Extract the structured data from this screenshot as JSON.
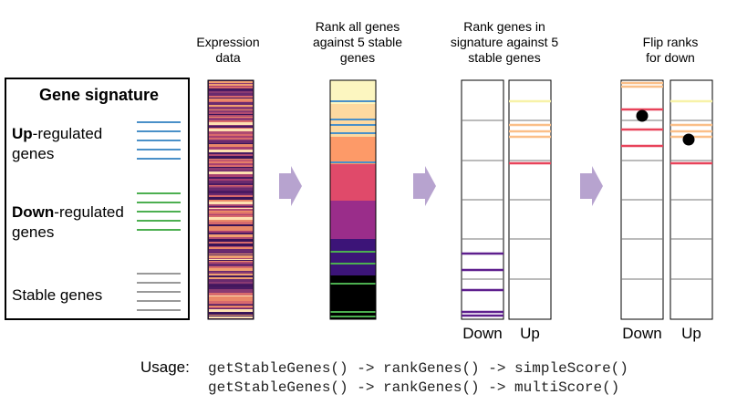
{
  "headers": {
    "expression": [
      "Expression",
      "data"
    ],
    "rank_all": [
      "Rank all genes",
      "against 5 stable",
      "genes"
    ],
    "rank_signature": [
      "Rank genes in",
      "signature against 5",
      "stable genes"
    ],
    "flip": [
      "Flip ranks",
      "for down"
    ]
  },
  "legend": {
    "title": "Gene signature",
    "up_bold": "Up",
    "up_rest": "-regulated",
    "up_line2": "genes",
    "down_bold": "Down",
    "down_rest": "-regulated",
    "down_line2": "genes",
    "stable": "Stable genes"
  },
  "labels": {
    "down1": "Down",
    "up1": "Up",
    "down2": "Down",
    "up2": "Up"
  },
  "usage": {
    "label": "Usage:",
    "line1": "getStableGenes() -> rankGenes() -> simpleScore()",
    "line2": "getStableGenes() -> rankGenes() -> multiScore()"
  },
  "colors": {
    "up": "#4a90c8",
    "down": "#4caf50",
    "stable": "#999999",
    "arrow": "#b7a3cf"
  }
}
